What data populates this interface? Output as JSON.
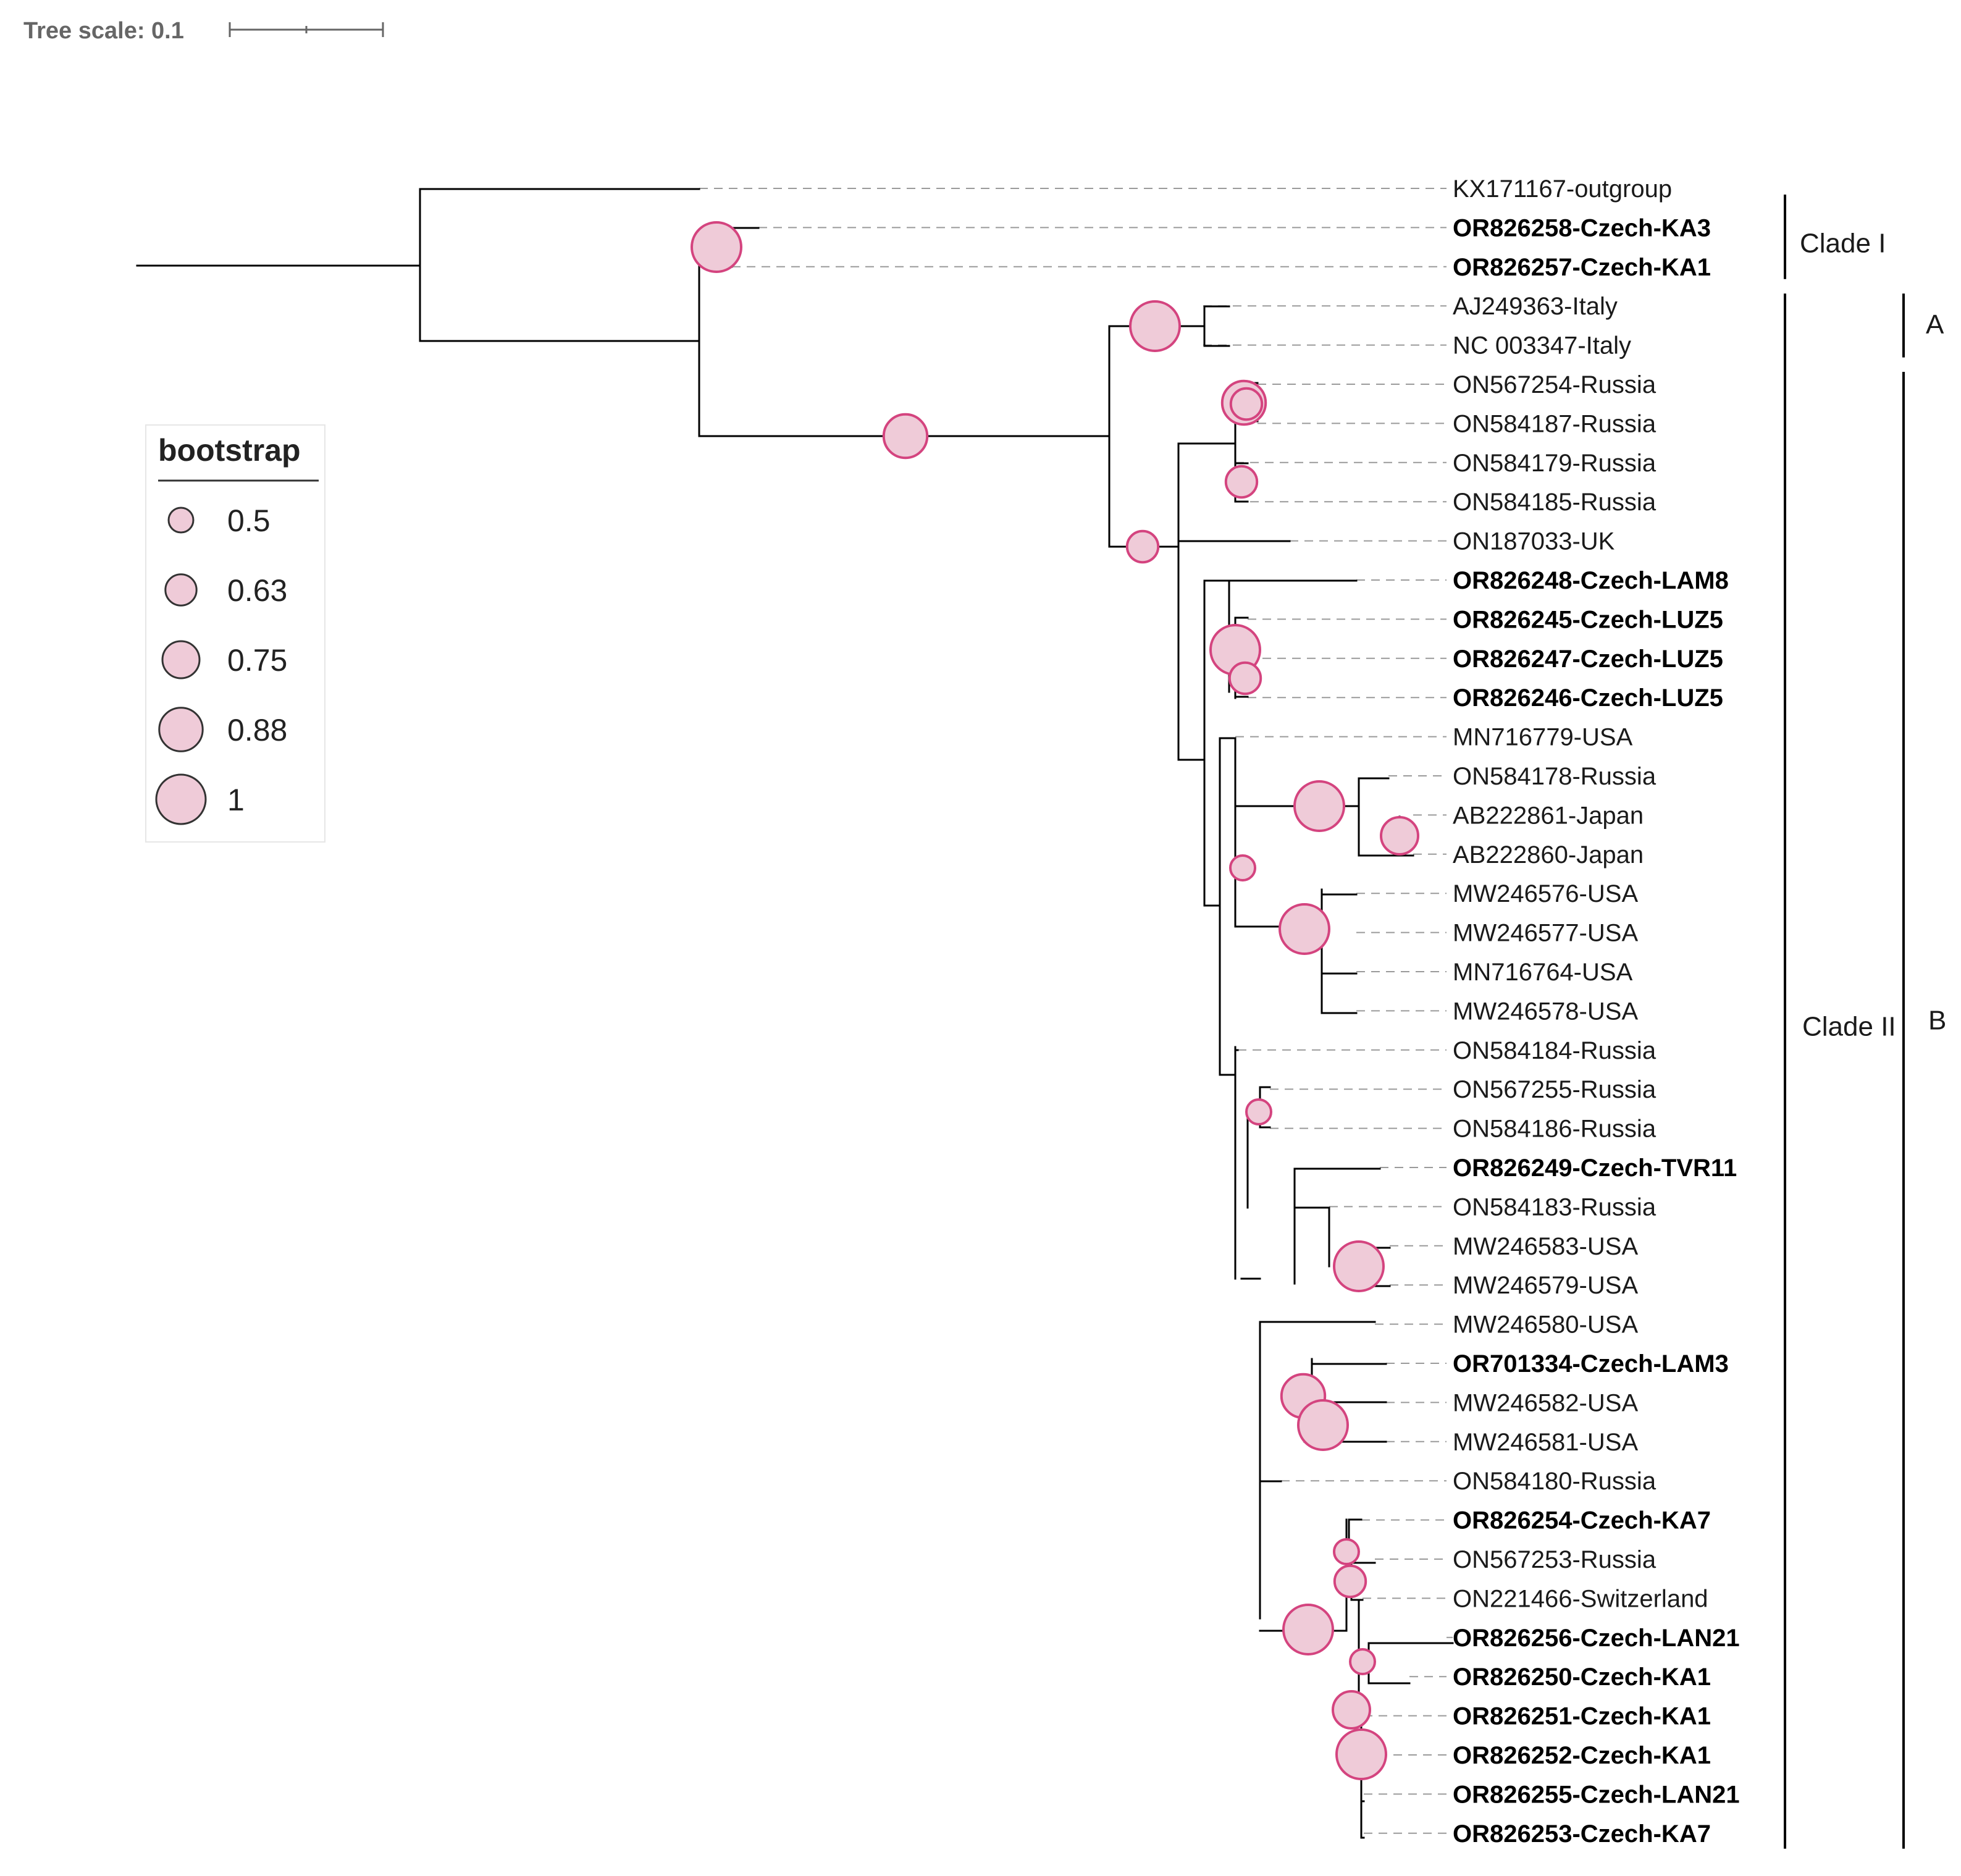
{
  "tree_scale": {
    "label": "Tree scale: 0.1"
  },
  "legend": {
    "title": "bootstrap",
    "items": [
      {
        "label": "0.5",
        "value": 0.5
      },
      {
        "label": "0.63",
        "value": 0.63
      },
      {
        "label": "0.75",
        "value": 0.75
      },
      {
        "label": "0.88",
        "value": 0.88
      },
      {
        "label": "1",
        "value": 1
      }
    ]
  },
  "colors": {
    "node_fill": "#efcbd8",
    "node_stroke": "#d4447f",
    "branch": "#000000",
    "guide": "#9a9a9a"
  },
  "clades": [
    {
      "label": "Clade I"
    },
    {
      "label": "A"
    },
    {
      "label": "Clade II"
    },
    {
      "label": "B"
    }
  ],
  "taxa": [
    {
      "name": "KX171167-outgroup",
      "bold": false
    },
    {
      "name": "OR826258-Czech-KA3",
      "bold": true
    },
    {
      "name": "OR826257-Czech-KA1",
      "bold": true
    },
    {
      "name": "AJ249363-Italy",
      "bold": false
    },
    {
      "name": "NC 003347-Italy",
      "bold": false
    },
    {
      "name": "ON567254-Russia",
      "bold": false
    },
    {
      "name": "ON584187-Russia",
      "bold": false
    },
    {
      "name": "ON584179-Russia",
      "bold": false
    },
    {
      "name": "ON584185-Russia",
      "bold": false
    },
    {
      "name": "ON187033-UK",
      "bold": false
    },
    {
      "name": "OR826248-Czech-LAM8",
      "bold": true
    },
    {
      "name": "OR826245-Czech-LUZ5",
      "bold": true
    },
    {
      "name": "OR826247-Czech-LUZ5",
      "bold": true
    },
    {
      "name": "OR826246-Czech-LUZ5",
      "bold": true
    },
    {
      "name": "MN716779-USA",
      "bold": false
    },
    {
      "name": "ON584178-Russia",
      "bold": false
    },
    {
      "name": "AB222861-Japan",
      "bold": false
    },
    {
      "name": "AB222860-Japan",
      "bold": false
    },
    {
      "name": "MW246576-USA",
      "bold": false
    },
    {
      "name": "MW246577-USA",
      "bold": false
    },
    {
      "name": "MN716764-USA",
      "bold": false
    },
    {
      "name": "MW246578-USA",
      "bold": false
    },
    {
      "name": "ON584184-Russia",
      "bold": false
    },
    {
      "name": "ON567255-Russia",
      "bold": false
    },
    {
      "name": "ON584186-Russia",
      "bold": false
    },
    {
      "name": "OR826249-Czech-TVR11",
      "bold": true
    },
    {
      "name": "ON584183-Russia",
      "bold": false
    },
    {
      "name": "MW246583-USA",
      "bold": false
    },
    {
      "name": "MW246579-USA",
      "bold": false
    },
    {
      "name": "MW246580-USA",
      "bold": false
    },
    {
      "name": "OR701334-Czech-LAM3",
      "bold": true
    },
    {
      "name": "MW246582-USA",
      "bold": false
    },
    {
      "name": "MW246581-USA",
      "bold": false
    },
    {
      "name": "ON584180-Russia",
      "bold": false
    },
    {
      "name": "OR826254-Czech-KA7",
      "bold": true
    },
    {
      "name": "ON567253-Russia",
      "bold": false
    },
    {
      "name": "ON221466-Switzerland",
      "bold": false
    },
    {
      "name": "OR826256-Czech-LAN21",
      "bold": true
    },
    {
      "name": "OR826250-Czech-KA1",
      "bold": true
    },
    {
      "name": "OR826251-Czech-KA1",
      "bold": true
    },
    {
      "name": "OR826252-Czech-KA1",
      "bold": true
    },
    {
      "name": "OR826255-Czech-LAN21",
      "bold": true
    },
    {
      "name": "OR826253-Czech-KA7",
      "bold": true
    }
  ],
  "bootstrap_nodes": [
    {
      "clade": "OR826258 + OR826257",
      "support": 1
    },
    {
      "clade": "ingroup (Italy + rest)",
      "support": 0.88
    },
    {
      "clade": "AJ249363 + NC 003347",
      "support": 1
    },
    {
      "clade": "ON567254..ON584185",
      "support": 0.88
    },
    {
      "clade": "ON567254 + ON584187",
      "support": 0.63
    },
    {
      "clade": "ON584179 + ON584185",
      "support": 0.63
    },
    {
      "clade": "ON187033 + rest",
      "support": 0.63
    },
    {
      "clade": "LUZ5 group",
      "support": 1
    },
    {
      "clade": "OR826247 + OR826246",
      "support": 0.63
    },
    {
      "clade": "Russia/Japan + USA",
      "support": 0.5
    },
    {
      "clade": "ON584178 + Japan",
      "support": 1
    },
    {
      "clade": "AB222861 + AB222860",
      "support": 0.75
    },
    {
      "clade": "MW246576..MW246578",
      "support": 1
    },
    {
      "clade": "ON567255 + ON584186",
      "support": 0.5
    },
    {
      "clade": "MW246583 + MW246579",
      "support": 1
    },
    {
      "clade": "LAM3 group",
      "support": 0.88
    },
    {
      "clade": "MW246582 + MW246581",
      "support": 1
    },
    {
      "clade": "KA7..KA7 group",
      "support": 1
    },
    {
      "clade": "OR826254 + ON567253",
      "support": 0.5
    },
    {
      "clade": "ON567253 + ON221466",
      "support": 0.63
    },
    {
      "clade": "LAN21 + KA1",
      "support": 0.5
    },
    {
      "clade": "KA1 group",
      "support": 0.75
    },
    {
      "clade": "KA1 + LAN21 + KA7",
      "support": 1
    }
  ]
}
